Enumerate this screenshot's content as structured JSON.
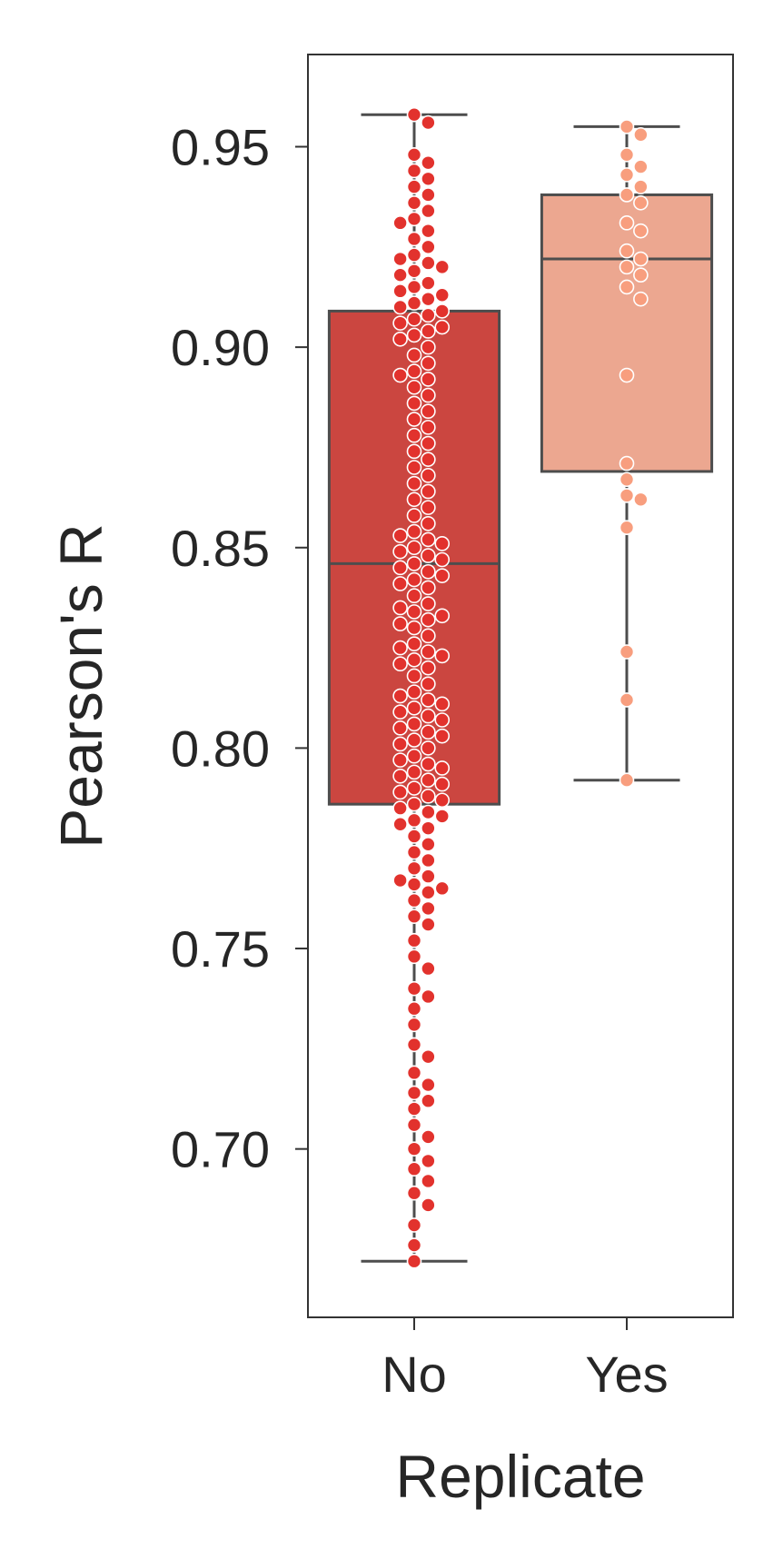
{
  "chart_data": {
    "type": "box",
    "xlabel": "Replicate",
    "ylabel": "Pearson's R",
    "ylim": [
      0.658,
      0.973
    ],
    "yticks": [
      0.7,
      0.75,
      0.8,
      0.85,
      0.9,
      0.95
    ],
    "ytick_labels": [
      "0.70",
      "0.75",
      "0.80",
      "0.85",
      "0.90",
      "0.95"
    ],
    "grid": false,
    "categories": [
      "No",
      "Yes"
    ],
    "boxes": [
      {
        "category": "No",
        "color": "#cb4640",
        "point_color": "#e2322d",
        "whisker_low": 0.672,
        "q1": 0.786,
        "median": 0.846,
        "q3": 0.909,
        "whisker_high": 0.958,
        "points": [
          0.958,
          0.956,
          0.948,
          0.946,
          0.944,
          0.942,
          0.94,
          0.938,
          0.936,
          0.934,
          0.932,
          0.931,
          0.929,
          0.927,
          0.925,
          0.923,
          0.922,
          0.921,
          0.92,
          0.919,
          0.918,
          0.916,
          0.915,
          0.914,
          0.913,
          0.912,
          0.911,
          0.91,
          0.909,
          0.908,
          0.907,
          0.906,
          0.905,
          0.904,
          0.903,
          0.902,
          0.9,
          0.898,
          0.896,
          0.894,
          0.893,
          0.892,
          0.89,
          0.888,
          0.886,
          0.884,
          0.882,
          0.88,
          0.878,
          0.876,
          0.874,
          0.872,
          0.87,
          0.868,
          0.866,
          0.864,
          0.862,
          0.86,
          0.858,
          0.856,
          0.854,
          0.853,
          0.852,
          0.851,
          0.85,
          0.849,
          0.848,
          0.847,
          0.846,
          0.845,
          0.844,
          0.843,
          0.842,
          0.841,
          0.84,
          0.838,
          0.836,
          0.835,
          0.834,
          0.833,
          0.832,
          0.831,
          0.83,
          0.828,
          0.826,
          0.825,
          0.824,
          0.823,
          0.822,
          0.821,
          0.82,
          0.818,
          0.816,
          0.814,
          0.813,
          0.812,
          0.811,
          0.81,
          0.809,
          0.808,
          0.807,
          0.806,
          0.805,
          0.804,
          0.803,
          0.802,
          0.801,
          0.8,
          0.798,
          0.797,
          0.796,
          0.795,
          0.794,
          0.793,
          0.792,
          0.791,
          0.79,
          0.789,
          0.788,
          0.787,
          0.786,
          0.785,
          0.784,
          0.783,
          0.782,
          0.781,
          0.78,
          0.778,
          0.776,
          0.774,
          0.772,
          0.77,
          0.768,
          0.767,
          0.766,
          0.765,
          0.764,
          0.762,
          0.76,
          0.758,
          0.756,
          0.752,
          0.748,
          0.745,
          0.74,
          0.738,
          0.735,
          0.731,
          0.726,
          0.723,
          0.719,
          0.716,
          0.714,
          0.712,
          0.71,
          0.706,
          0.703,
          0.7,
          0.697,
          0.695,
          0.692,
          0.689,
          0.686,
          0.681,
          0.676,
          0.672
        ]
      },
      {
        "category": "Yes",
        "color": "#eca790",
        "point_color": "#f89e7e",
        "whisker_low": 0.792,
        "q1": 0.869,
        "median": 0.922,
        "q3": 0.938,
        "whisker_high": 0.955,
        "points": [
          0.955,
          0.953,
          0.948,
          0.945,
          0.943,
          0.94,
          0.938,
          0.936,
          0.931,
          0.929,
          0.924,
          0.922,
          0.92,
          0.918,
          0.915,
          0.912,
          0.893,
          0.871,
          0.867,
          0.863,
          0.862,
          0.855,
          0.824,
          0.812,
          0.792
        ]
      }
    ]
  }
}
